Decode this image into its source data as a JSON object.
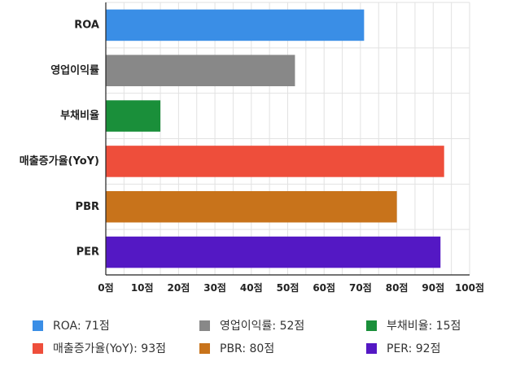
{
  "chart_data": {
    "type": "bar",
    "orientation": "horizontal",
    "categories": [
      "ROA",
      "영업이익률",
      "부채비율",
      "매출증가율(YoY)",
      "PBR",
      "PER"
    ],
    "values": [
      71,
      52,
      15,
      93,
      80,
      92
    ],
    "colors": [
      "#3a8ee6",
      "#888888",
      "#1a8f3a",
      "#ee4e3b",
      "#c8731b",
      "#5418c4"
    ],
    "x_ticks": [
      "0점",
      "10점",
      "20점",
      "30점",
      "40점",
      "50점",
      "60점",
      "70점",
      "80점",
      "90점",
      "100점"
    ],
    "xlim": [
      0,
      100
    ],
    "grid": true,
    "legend_position": "bottom",
    "legend": [
      {
        "label": "ROA: 71점",
        "color": "#3a8ee6"
      },
      {
        "label": "영업이익률: 52점",
        "color": "#888888"
      },
      {
        "label": "부채비율: 15점",
        "color": "#1a8f3a"
      },
      {
        "label": "매출증가율(YoY): 93점",
        "color": "#ee4e3b"
      },
      {
        "label": "PBR: 80점",
        "color": "#c8731b"
      },
      {
        "label": "PER: 92점",
        "color": "#5418c4"
      }
    ]
  }
}
